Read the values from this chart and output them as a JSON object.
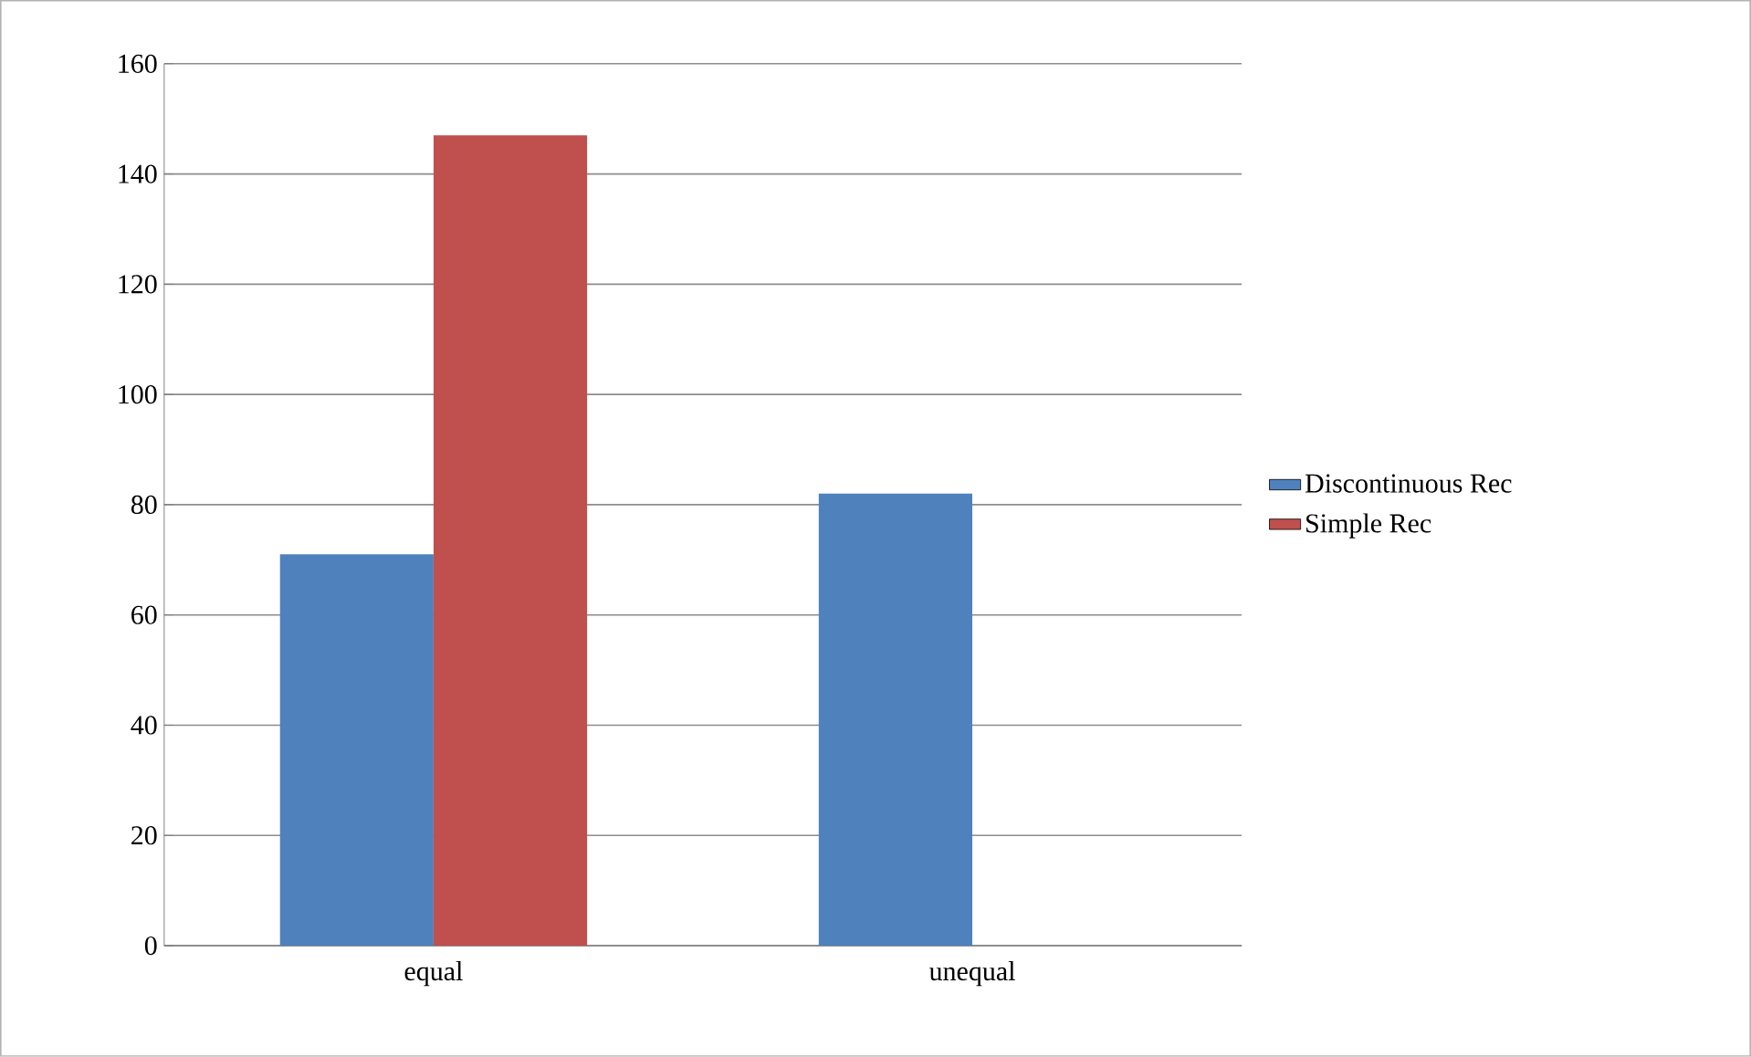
{
  "chart_data": {
    "type": "bar",
    "categories": [
      "equal",
      "unequal"
    ],
    "series": [
      {
        "name": "Discontinuous Rec",
        "color": "#4f81bd",
        "values": [
          71,
          82
        ]
      },
      {
        "name": "Simple Rec",
        "color": "#c0504d",
        "values": [
          147,
          null
        ]
      }
    ],
    "ylim": [
      0,
      160
    ],
    "yticks": [
      0,
      20,
      40,
      60,
      80,
      100,
      120,
      140,
      160
    ],
    "grid": "y",
    "legend": "right"
  }
}
